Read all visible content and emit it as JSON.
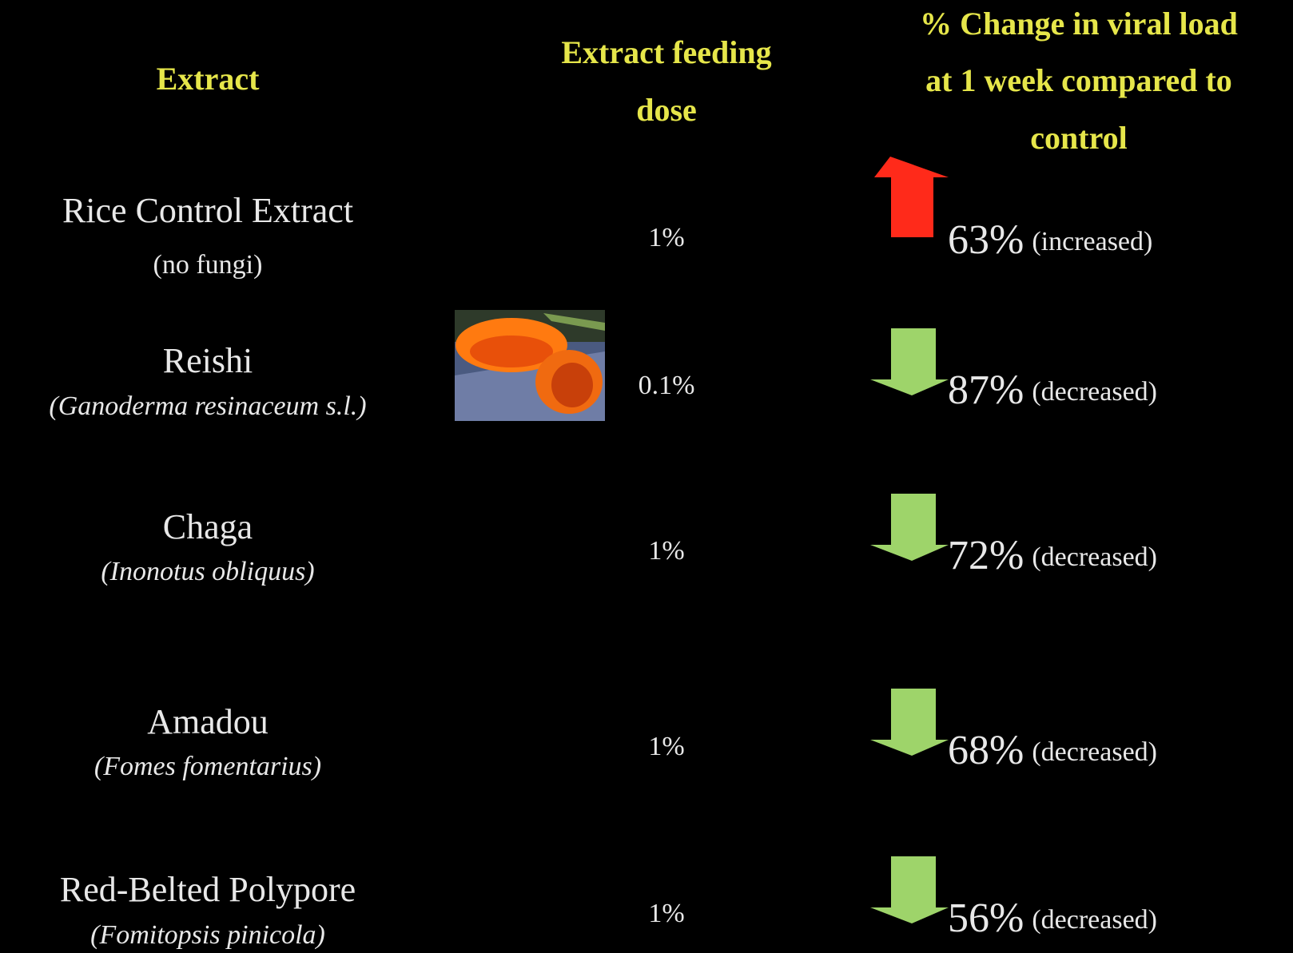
{
  "header": {
    "columns": [
      {
        "lines": [
          "Extract"
        ]
      },
      {
        "lines": [
          "Extract feeding",
          "dose"
        ]
      },
      {
        "lines": [
          "% Change in viral load",
          "at 1 week compared to",
          "control"
        ]
      }
    ]
  },
  "colors": {
    "header": "#e6e64a",
    "text": "#e8e8e8",
    "up": "#ff2a1a",
    "down": "#9ed46a"
  },
  "rows": [
    {
      "name": "Rice Control Extract",
      "latin": "(no fungi)",
      "italic": false,
      "dose": "1%",
      "change": "63%",
      "note": "(increased)",
      "direction": "up"
    },
    {
      "name": "Reishi",
      "latin": "(Ganoderma resinaceum s.l.)",
      "italic": true,
      "dose": "0.1%",
      "change": "87%",
      "note": "(decreased)",
      "direction": "down"
    },
    {
      "name": "Chaga",
      "latin": "(Inonotus obliquus)",
      "italic": true,
      "dose": "1%",
      "change": "72%",
      "note": "(decreased)",
      "direction": "down"
    },
    {
      "name": "Amadou",
      "latin": "(Fomes fomentarius)",
      "italic": true,
      "dose": "1%",
      "change": "68%",
      "note": "(decreased)",
      "direction": "down"
    },
    {
      "name": "Red-Belted Polypore",
      "latin": "(Fomitopsis pinicola)",
      "italic": true,
      "dose": "1%",
      "change": "56%",
      "note": "(decreased)",
      "direction": "down"
    }
  ]
}
